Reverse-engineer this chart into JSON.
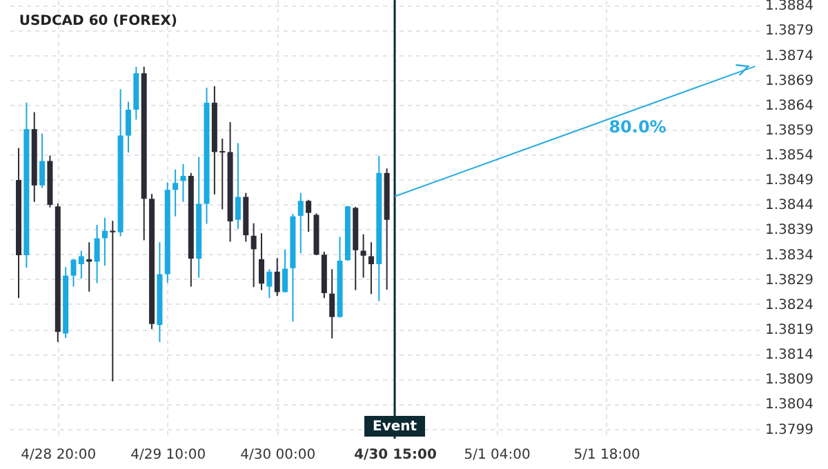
{
  "chart_data": {
    "type": "candlestick",
    "title": "USDCAD 60 (FOREX)",
    "categories": [
      null,
      null,
      null,
      null,
      null,
      null,
      "4/28 20:00",
      null,
      null,
      null,
      null,
      null,
      null,
      null,
      null,
      null,
      null,
      null,
      null,
      null,
      "4/29 10:00",
      null,
      null,
      null,
      null,
      null,
      null,
      null,
      null,
      null,
      null,
      null,
      null,
      null,
      "4/30 00:00",
      null,
      null,
      null,
      null,
      null,
      null,
      null,
      null,
      null,
      null,
      null,
      null,
      null,
      null,
      "4/30 15:00",
      null,
      null,
      null,
      null,
      null,
      null,
      null,
      null,
      null,
      null,
      null,
      null,
      "5/1 04:00",
      null,
      null,
      null,
      null,
      null,
      null,
      null,
      null,
      null,
      null,
      null,
      null,
      null,
      "5/1 18:00",
      null,
      null,
      null,
      null,
      null,
      null,
      null,
      null,
      null,
      null,
      null,
      null,
      null,
      null,
      null,
      null,
      null,
      null,
      null
    ],
    "ohlc": [
      null,
      [
        1.38489,
        1.38553,
        1.38252,
        1.38338
      ],
      [
        1.38338,
        1.38644,
        1.38313,
        1.38591
      ],
      [
        1.38591,
        1.38625,
        1.38445,
        1.38478
      ],
      [
        1.38478,
        1.38582,
        1.38473,
        1.38527
      ],
      [
        1.38527,
        1.38538,
        1.38434,
        1.38439
      ],
      [
        1.38436,
        1.38442,
        1.38164,
        1.38184
      ],
      [
        1.38181,
        1.38314,
        1.38172,
        1.38297
      ],
      [
        1.38297,
        1.38331,
        1.38275,
        1.38329
      ],
      [
        1.3832,
        1.38347,
        1.38291,
        1.38336
      ],
      [
        1.3833,
        1.38364,
        1.38265,
        1.38325
      ],
      [
        1.38325,
        1.38399,
        1.38282,
        1.38372
      ],
      [
        1.38372,
        1.38413,
        1.38317,
        1.38387
      ],
      [
        1.38387,
        1.38407,
        1.38085,
        1.38384
      ],
      [
        1.38384,
        1.38671,
        1.38376,
        1.38578
      ],
      [
        1.38578,
        1.38646,
        1.38544,
        1.3863
      ],
      [
        1.3863,
        1.38716,
        1.3861,
        1.38703
      ],
      [
        1.38703,
        1.38716,
        1.38368,
        1.38451
      ],
      [
        1.38451,
        1.38461,
        1.3819,
        1.382
      ],
      [
        1.38198,
        1.38364,
        1.38164,
        1.383
      ],
      [
        1.383,
        1.38484,
        1.38283,
        1.38469
      ],
      [
        1.38469,
        1.3851,
        1.38416,
        1.38483
      ],
      [
        1.38487,
        1.38521,
        1.38445,
        1.38497
      ],
      [
        1.38497,
        1.38503,
        1.38275,
        1.38331
      ],
      [
        1.38331,
        1.38535,
        1.38293,
        1.38441
      ],
      [
        1.38441,
        1.38674,
        1.38401,
        1.38644
      ],
      [
        1.38644,
        1.38677,
        1.3846,
        1.38545
      ],
      [
        1.38547,
        1.38572,
        1.3843,
        1.38544
      ],
      [
        1.38545,
        1.38605,
        1.38365,
        1.38406
      ],
      [
        1.38409,
        1.38563,
        1.38391,
        1.38455
      ],
      [
        1.38455,
        1.38463,
        1.38365,
        1.38378
      ],
      [
        1.38377,
        1.38402,
        1.38274,
        1.3835
      ],
      [
        1.3833,
        1.38382,
        1.38268,
        1.38281
      ],
      [
        1.38275,
        1.3831,
        1.38252,
        1.38305
      ],
      [
        1.38305,
        1.38332,
        1.38256,
        1.38264
      ],
      [
        1.38264,
        1.3835,
        1.38263,
        1.38311
      ],
      [
        1.38312,
        1.38421,
        1.38205,
        1.38416
      ],
      [
        1.38417,
        1.38463,
        1.38342,
        1.38447
      ],
      [
        1.38447,
        1.38449,
        1.38385,
        1.38423
      ],
      [
        1.38419,
        1.38422,
        1.38338,
        1.38339
      ],
      [
        1.38339,
        1.38345,
        1.38252,
        1.38262
      ],
      [
        1.38261,
        1.3831,
        1.38171,
        1.38214
      ],
      [
        1.38214,
        1.38375,
        1.38213,
        1.38327
      ],
      [
        1.38328,
        1.38437,
        1.38327,
        1.38436
      ],
      [
        1.38433,
        1.38435,
        1.38268,
        1.38348
      ],
      [
        1.38347,
        1.3838,
        1.38293,
        1.38337
      ],
      [
        1.38336,
        1.38364,
        1.3826,
        1.3832
      ],
      [
        1.3832,
        1.38537,
        1.38246,
        1.38503
      ],
      [
        1.38503,
        1.38512,
        1.38269,
        1.38409
      ],
      null,
      null,
      null,
      null,
      null,
      null,
      null,
      null,
      null,
      null,
      null,
      null,
      null,
      null,
      null,
      null,
      null,
      null,
      null,
      null,
      null,
      null,
      null,
      null,
      null,
      null,
      null,
      null,
      null,
      null,
      null,
      null,
      null,
      null,
      null,
      null,
      null,
      null,
      null,
      null,
      null,
      null,
      null,
      null,
      null,
      null,
      null
    ],
    "colors": [
      null,
      "#2b2b35",
      "#1ba9e1",
      "#2b2b35",
      "#1ba9e1",
      "#2b2b35",
      "#2b2b35",
      "#1ba9e1",
      "#1ba9e1",
      "#1ba9e1",
      "#2b2b35",
      "#1ba9e1",
      "#1ba9e1",
      "#2b2b35",
      "#1ba9e1",
      "#1ba9e1",
      "#1ba9e1",
      "#2b2b35",
      "#2b2b35",
      "#1ba9e1",
      "#1ba9e1",
      "#1ba9e1",
      "#1ba9e1",
      "#2b2b35",
      "#1ba9e1",
      "#1ba9e1",
      "#2b2b35",
      "#2b2b35",
      "#2b2b35",
      "#1ba9e1",
      "#2b2b35",
      "#2b2b35",
      "#2b2b35",
      "#1ba9e1",
      "#2b2b35",
      "#1ba9e1",
      "#1ba9e1",
      "#1ba9e1",
      "#2b2b35",
      "#2b2b35",
      "#2b2b35",
      "#2b2b35",
      "#1ba9e1",
      "#1ba9e1",
      "#2b2b35",
      "#2b2b35",
      "#2b2b35",
      "#1ba9e1",
      "#2b2b35",
      null,
      null,
      null,
      null,
      null,
      null,
      null,
      null,
      null,
      null,
      null,
      null,
      null,
      null,
      null,
      null,
      null,
      null,
      null,
      null,
      null,
      null,
      null,
      null,
      null,
      null,
      null,
      null,
      null,
      null,
      null,
      null,
      null,
      null,
      null,
      null,
      null,
      null,
      null,
      null,
      null,
      null,
      null,
      null,
      null,
      null,
      null
    ],
    "series": [
      {
        "type": "line",
        "color": "#29abe2",
        "values": [
          null,
          null,
          null,
          null,
          null,
          null,
          null,
          null,
          null,
          null,
          null,
          null,
          null,
          null,
          null,
          null,
          null,
          null,
          null,
          null,
          null,
          null,
          null,
          null,
          null,
          null,
          null,
          null,
          null,
          null,
          null,
          null,
          null,
          null,
          null,
          null,
          null,
          null,
          null,
          null,
          null,
          null,
          null,
          null,
          null,
          null,
          null,
          null,
          null,
          1.38456,
          null,
          null,
          null,
          null,
          null,
          null,
          null,
          null,
          null,
          null,
          null,
          null,
          null,
          null,
          null,
          null,
          null,
          null,
          null,
          null,
          null,
          null,
          null,
          null,
          null,
          null,
          null,
          null,
          null,
          null,
          null,
          null,
          null,
          null,
          null,
          null,
          null,
          null,
          null,
          null,
          null,
          null,
          null,
          null,
          null,
          1.38717
        ]
      }
    ],
    "ylim": [
      1.3797,
      1.3885
    ],
    "yticks": [
      1.3799,
      1.3804,
      1.3809,
      1.3814,
      1.3819,
      1.3824,
      1.3829,
      1.3834,
      1.3839,
      1.3844,
      1.3849,
      1.3854,
      1.3859,
      1.3864,
      1.3869,
      1.3874,
      1.3879,
      1.3884
    ],
    "ref_lines": [
      {
        "axis": "x",
        "value": "4/30 15:00",
        "label": "Event",
        "color": "#0d2a33"
      }
    ],
    "annotations": [
      "80.0%"
    ],
    "grid": true
  }
}
